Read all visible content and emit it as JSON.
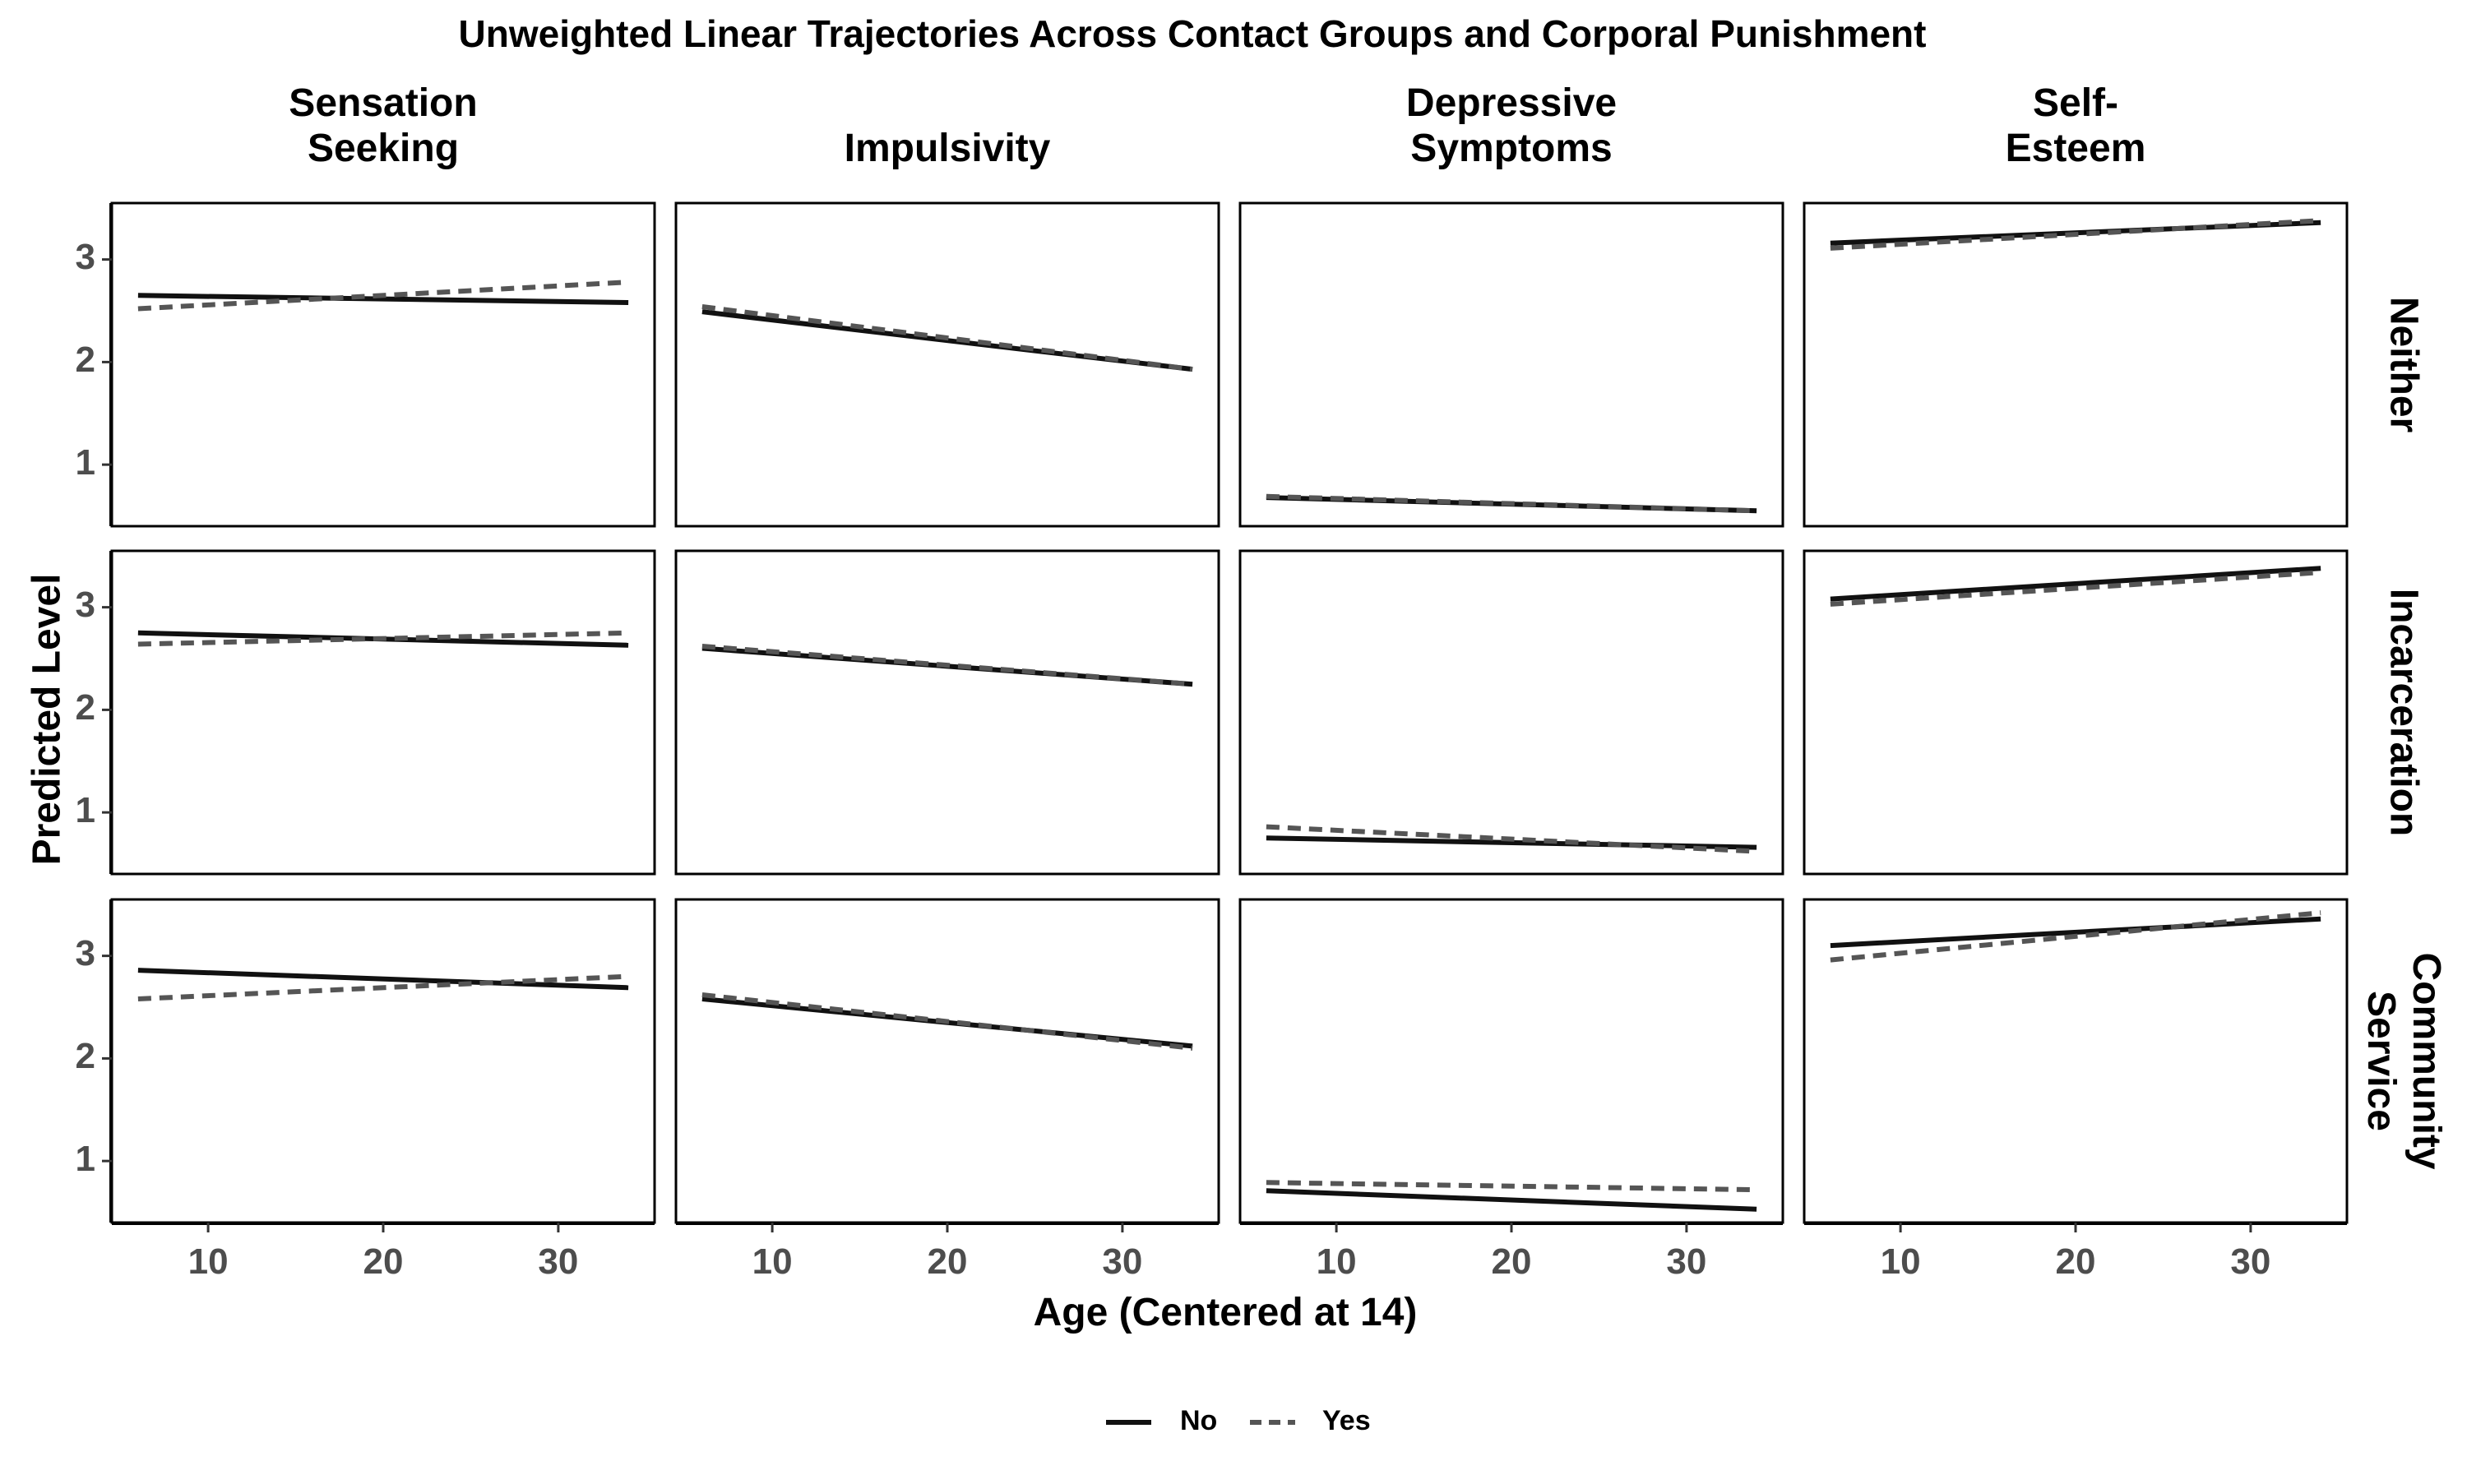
{
  "chart_data": {
    "type": "line",
    "title": "Unweighted Linear Trajectories Across Contact Groups and Corporal Punishment",
    "xlabel": "Age (Centered at 14)",
    "ylabel": "Predicted Level",
    "xlim": [
      4.5,
      35.5
    ],
    "ylim": [
      0.4,
      3.55
    ],
    "x_ticks": [
      10,
      20,
      30
    ],
    "y_ticks": [
      1,
      2,
      3
    ],
    "grid": false,
    "legend_position": "bottom",
    "legend": [
      {
        "name": "No",
        "style": "solid"
      },
      {
        "name": "Yes",
        "style": "dashed"
      }
    ],
    "columns": [
      {
        "key": "sensation",
        "label_lines": [
          "Sensation",
          "Seeking"
        ]
      },
      {
        "key": "impulsivity",
        "label_lines": [
          "Impulsivity"
        ]
      },
      {
        "key": "depressive",
        "label_lines": [
          "Depressive",
          "Symptoms"
        ]
      },
      {
        "key": "selfesteem",
        "label_lines": [
          "Self-",
          "Esteem"
        ]
      }
    ],
    "rows": [
      {
        "key": "neither",
        "label_lines": [
          "Neither"
        ]
      },
      {
        "key": "incarceration",
        "label_lines": [
          "Incarceration"
        ]
      },
      {
        "key": "community",
        "label_lines": [
          "Community",
          "Service"
        ]
      }
    ],
    "panels": [
      [
        {
          "series": [
            {
              "name": "No",
              "x": [
                6,
                34
              ],
              "y": [
                2.65,
                2.58
              ]
            },
            {
              "name": "Yes",
              "x": [
                6,
                34
              ],
              "y": [
                2.52,
                2.78
              ]
            }
          ]
        },
        {
          "series": [
            {
              "name": "No",
              "x": [
                6,
                34
              ],
              "y": [
                2.49,
                1.93
              ]
            },
            {
              "name": "Yes",
              "x": [
                6,
                34
              ],
              "y": [
                2.54,
                1.93
              ]
            }
          ]
        },
        {
          "series": [
            {
              "name": "No",
              "x": [
                6,
                34
              ],
              "y": [
                0.68,
                0.55
              ]
            },
            {
              "name": "Yes",
              "x": [
                6,
                34
              ],
              "y": [
                0.69,
                0.55
              ]
            }
          ]
        },
        {
          "series": [
            {
              "name": "No",
              "x": [
                6,
                34
              ],
              "y": [
                3.16,
                3.36
              ]
            },
            {
              "name": "Yes",
              "x": [
                6,
                34
              ],
              "y": [
                3.11,
                3.38
              ]
            }
          ]
        }
      ],
      [
        {
          "series": [
            {
              "name": "No",
              "x": [
                6,
                34
              ],
              "y": [
                2.75,
                2.63
              ]
            },
            {
              "name": "Yes",
              "x": [
                6,
                34
              ],
              "y": [
                2.64,
                2.75
              ]
            }
          ]
        },
        {
          "series": [
            {
              "name": "No",
              "x": [
                6,
                34
              ],
              "y": [
                2.6,
                2.25
              ]
            },
            {
              "name": "Yes",
              "x": [
                6,
                34
              ],
              "y": [
                2.62,
                2.25
              ]
            }
          ]
        },
        {
          "series": [
            {
              "name": "No",
              "x": [
                6,
                34
              ],
              "y": [
                0.75,
                0.66
              ]
            },
            {
              "name": "Yes",
              "x": [
                6,
                34
              ],
              "y": [
                0.86,
                0.62
              ]
            }
          ]
        },
        {
          "series": [
            {
              "name": "No",
              "x": [
                6,
                34
              ],
              "y": [
                3.08,
                3.38
              ]
            },
            {
              "name": "Yes",
              "x": [
                6,
                34
              ],
              "y": [
                3.03,
                3.34
              ]
            }
          ]
        }
      ],
      [
        {
          "series": [
            {
              "name": "No",
              "x": [
                6,
                34
              ],
              "y": [
                2.86,
                2.69
              ]
            },
            {
              "name": "Yes",
              "x": [
                6,
                34
              ],
              "y": [
                2.58,
                2.8
              ]
            }
          ]
        },
        {
          "series": [
            {
              "name": "No",
              "x": [
                6,
                34
              ],
              "y": [
                2.58,
                2.12
              ]
            },
            {
              "name": "Yes",
              "x": [
                6,
                34
              ],
              "y": [
                2.62,
                2.1
              ]
            }
          ]
        },
        {
          "series": [
            {
              "name": "No",
              "x": [
                6,
                34
              ],
              "y": [
                0.71,
                0.53
              ]
            },
            {
              "name": "Yes",
              "x": [
                6,
                34
              ],
              "y": [
                0.79,
                0.72
              ]
            }
          ]
        },
        {
          "series": [
            {
              "name": "No",
              "x": [
                6,
                34
              ],
              "y": [
                3.1,
                3.36
              ]
            },
            {
              "name": "Yes",
              "x": [
                6,
                34
              ],
              "y": [
                2.96,
                3.42
              ]
            }
          ]
        }
      ]
    ],
    "colors": {
      "no": "#111111",
      "yes": "#555555",
      "axis_text": "#4d4d4d",
      "text": "#000000"
    }
  }
}
